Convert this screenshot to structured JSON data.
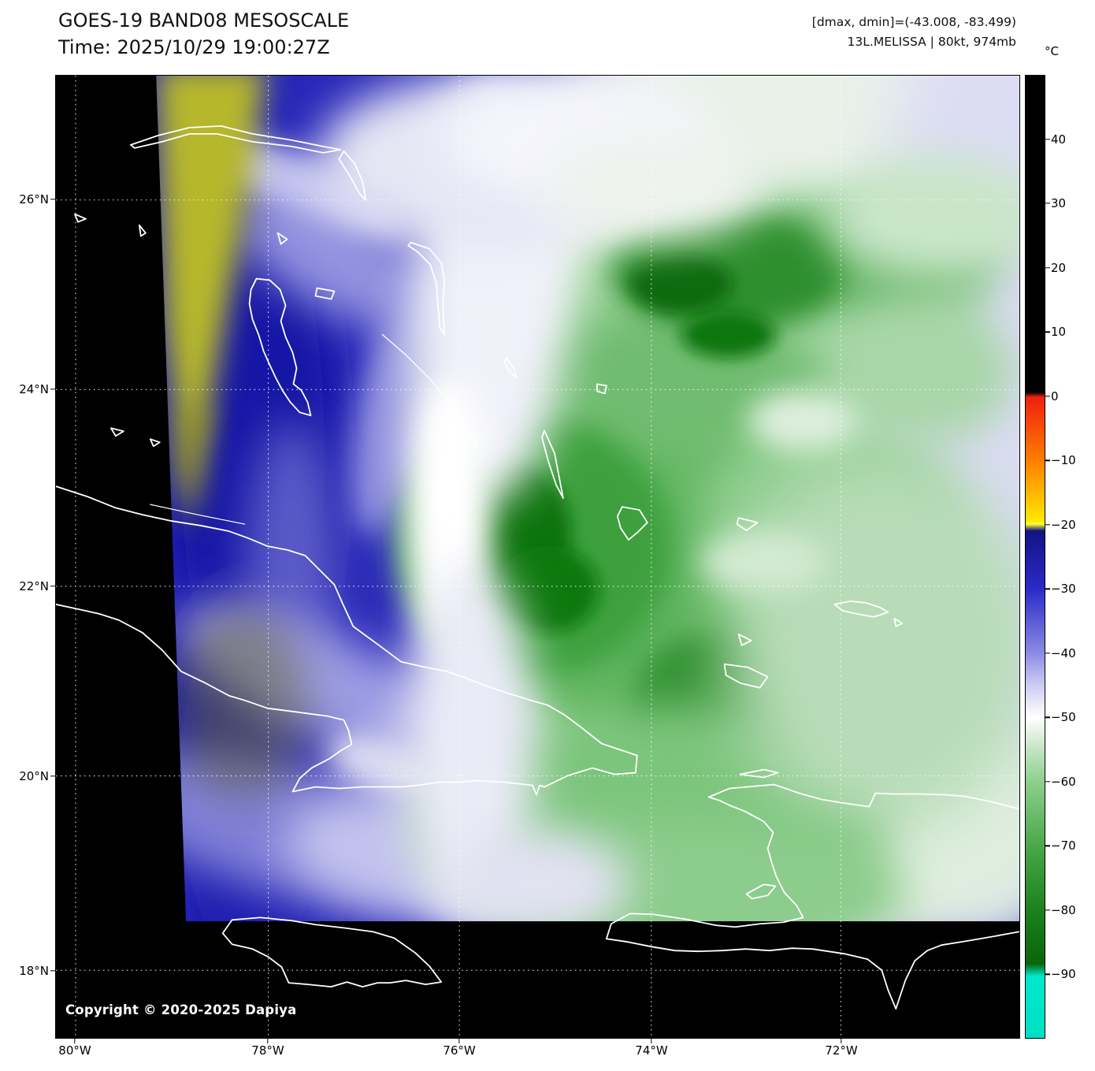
{
  "header": {
    "title": "GOES-19 BAND08 MESOSCALE",
    "time": "Time: 2025/10/29 19:00:27Z",
    "range_readout": "[dmax, dmin]=(-43.008, -83.499)",
    "storm_readout": "13L.MELISSA | 80kt, 974mb"
  },
  "colorbar": {
    "unit": "°C",
    "tick_labels": [
      "40",
      "30",
      "20",
      "10",
      "0",
      "−10",
      "−20",
      "−30",
      "−40",
      "−50",
      "−60",
      "−70",
      "−80",
      "−90"
    ],
    "key_colors": {
      "above_zero": "#000000",
      "zero": "#ef2010",
      "minus10": "#ff7d00",
      "minus20": "#ffe800",
      "minus25": "#131385",
      "minus40": "#8b8be4",
      "minus50": "#ffffff",
      "minus60": "#8ed08e",
      "minus80": "#1d811d",
      "minus95": "#00e8cc"
    }
  },
  "map": {
    "lat_labels": [
      "26°N",
      "24°N",
      "22°N",
      "20°N",
      "18°N"
    ],
    "lon_labels": [
      "80°W",
      "78°W",
      "76°W",
      "74°W",
      "72°W"
    ]
  },
  "footer": {
    "copyright": "Copyright © 2020-2025 Dapiya"
  }
}
